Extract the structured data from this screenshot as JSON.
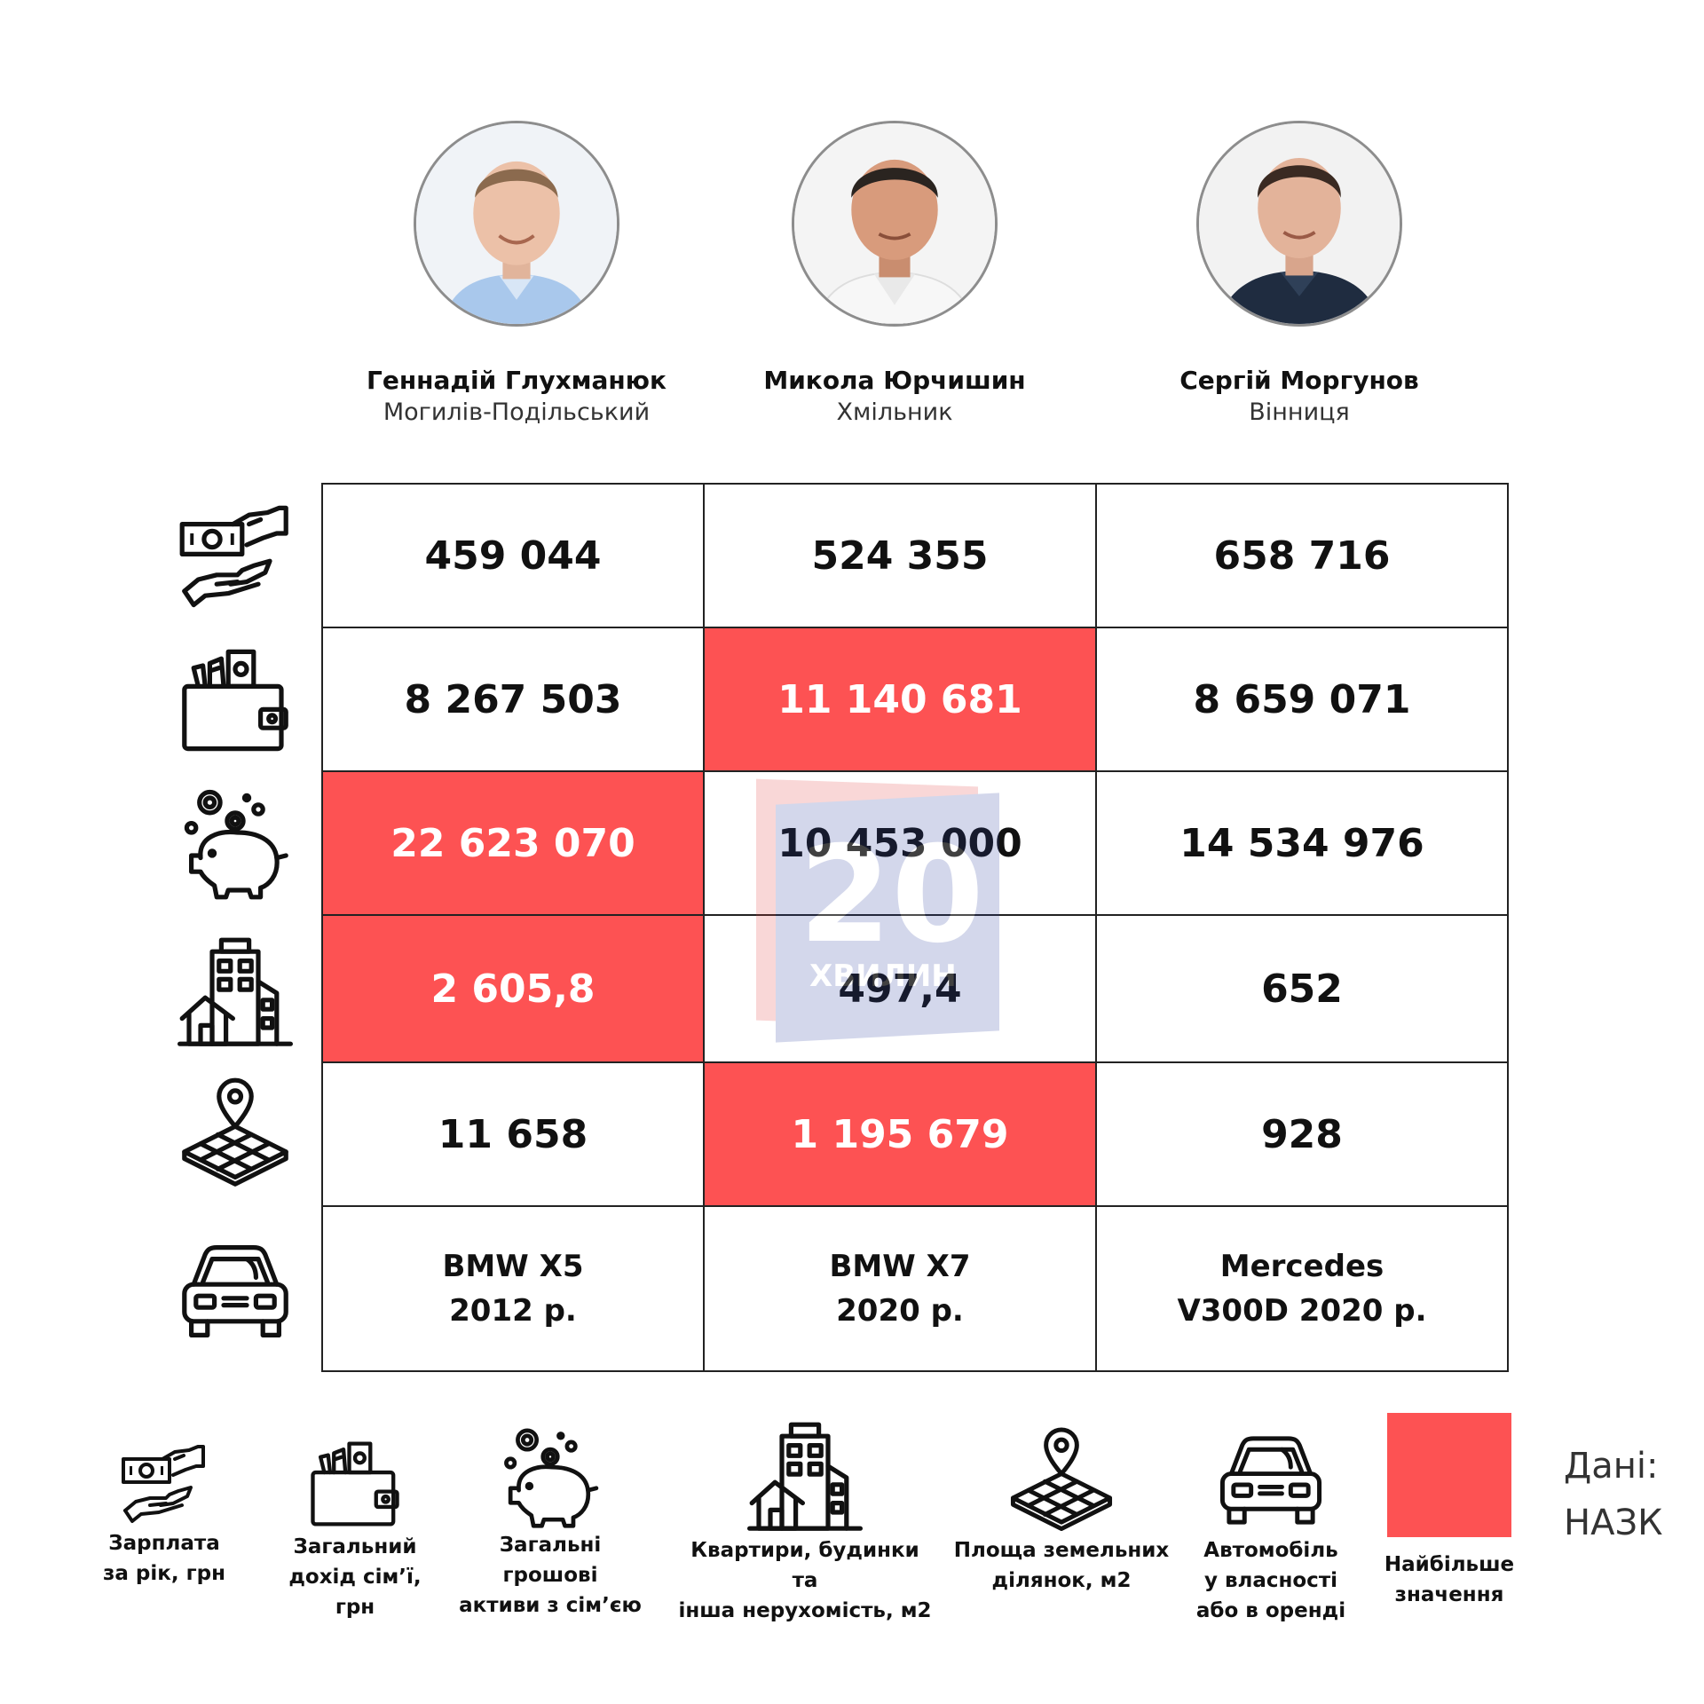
{
  "colors": {
    "highlight": "#fd5253",
    "text": "#111111",
    "border": "#222222"
  },
  "people": [
    {
      "name": "Геннадій Глухманюк",
      "city": "Могилів-Подільський"
    },
    {
      "name": "Микола Юрчишин",
      "city": "Хмільник"
    },
    {
      "name": "Сергій Моргунов",
      "city": "Вінниця"
    }
  ],
  "rows": [
    {
      "icon": "salary-icon",
      "cells": [
        "459 044",
        "524 355",
        "658 716"
      ],
      "highlighted": [
        false,
        false,
        false
      ]
    },
    {
      "icon": "wallet-icon",
      "cells": [
        "8 267 503",
        "11 140 681",
        "8 659 071"
      ],
      "highlighted": [
        false,
        true,
        false
      ]
    },
    {
      "icon": "piggy-bank-icon",
      "cells": [
        "22 623 070",
        "10 453 000",
        "14 534 976"
      ],
      "highlighted": [
        true,
        false,
        false
      ]
    },
    {
      "icon": "buildings-icon",
      "cells": [
        "2 605,8",
        "497,4",
        "652"
      ],
      "highlighted": [
        true,
        false,
        false
      ]
    },
    {
      "icon": "land-plot-icon",
      "cells": [
        "11 658",
        "1 195 679",
        "928"
      ],
      "highlighted": [
        false,
        true,
        false
      ]
    },
    {
      "icon": "car-icon",
      "cells": [
        [
          "BMW X5",
          "2012 р."
        ],
        [
          "BMW X7",
          "2020 р."
        ],
        [
          "Mercedes",
          "V300D 2020 р."
        ]
      ],
      "highlighted": [
        false,
        false,
        false
      ]
    }
  ],
  "watermark": {
    "number": "20",
    "text": "ХВИЛИН"
  },
  "legend": {
    "salary": [
      "Зарплата",
      "за рік, грн"
    ],
    "income": [
      "Загальний",
      "дохід сім’ї, грн"
    ],
    "assets": [
      "Загальні грошові",
      "активи з сім’єю"
    ],
    "realty": [
      "Квартири, будинки та",
      "інша нерухомість, м2"
    ],
    "land": [
      "Площа земельних",
      "ділянок, м2"
    ],
    "car": [
      "Автомобіль",
      "у власності",
      "або в оренді"
    ],
    "max": [
      "Найбільше",
      "значення"
    ]
  },
  "source": [
    "Дані:",
    "НАЗК"
  ]
}
